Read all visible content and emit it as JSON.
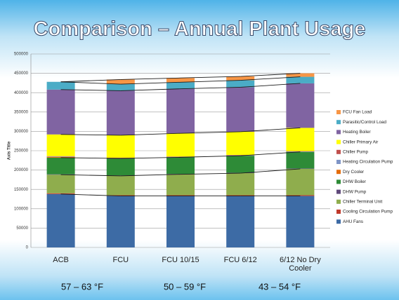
{
  "chart_data": {
    "type": "stacked_bar",
    "title": "Comparison – Annual Plant Usage",
    "y_label": "Axis Title",
    "categories": [
      "ACB",
      "FCU",
      "FCU 10/15",
      "FCU 6/12",
      "6/12 No Dry Cooler"
    ],
    "ylim": [
      0,
      500000
    ],
    "yticks": [
      0,
      50000,
      100000,
      150000,
      200000,
      250000,
      300000,
      350000,
      400000,
      450000,
      500000
    ],
    "grid": true,
    "annotations": [
      "57 – 63 °F",
      "50 – 59 °F",
      "43 – 54 °F"
    ],
    "series": [
      {
        "name": "AHU Fans",
        "color": "#3d6ba5",
        "values": [
          138000,
          133000,
          133000,
          133000,
          133000
        ]
      },
      {
        "name": "Cooling Circulation Pump",
        "color": "#c0392b",
        "values": [
          2000,
          2000,
          2000,
          2000,
          2000
        ]
      },
      {
        "name": "Chiller Terminal Unit",
        "color": "#8fad4d",
        "values": [
          48000,
          50000,
          54000,
          57000,
          68000
        ]
      },
      {
        "name": "DHW Pump",
        "color": "#5f497a",
        "values": [
          1000,
          1000,
          1000,
          1000,
          1000
        ]
      },
      {
        "name": "DHW Boiler",
        "color": "#2e8b37",
        "values": [
          43000,
          44000,
          43000,
          44000,
          43000
        ]
      },
      {
        "name": "Dry Cooler",
        "color": "#e46c0a",
        "values": [
          2000,
          0,
          0,
          0,
          0
        ]
      },
      {
        "name": "Heating Circulation Pump",
        "color": "#7f95c6",
        "values": [
          1000,
          1000,
          1000,
          1000,
          1000
        ]
      },
      {
        "name": "Chiller Pump",
        "color": "#c0504d",
        "values": [
          1000,
          1000,
          1000,
          1000,
          1000
        ]
      },
      {
        "name": "Chiller Primary Air",
        "color": "#ffff00",
        "values": [
          56000,
          58000,
          60000,
          60000,
          60000
        ]
      },
      {
        "name": "Heating Boiler",
        "color": "#8064a2",
        "values": [
          116000,
          115000,
          115000,
          115000,
          115000
        ]
      },
      {
        "name": "Parasitic/Control Load",
        "color": "#4bacc6",
        "values": [
          20000,
          17000,
          17000,
          18000,
          17000
        ]
      },
      {
        "name": "FCU Fan Load",
        "color": "#f79646",
        "values": [
          0,
          12000,
          11000,
          10000,
          9000
        ]
      }
    ]
  }
}
